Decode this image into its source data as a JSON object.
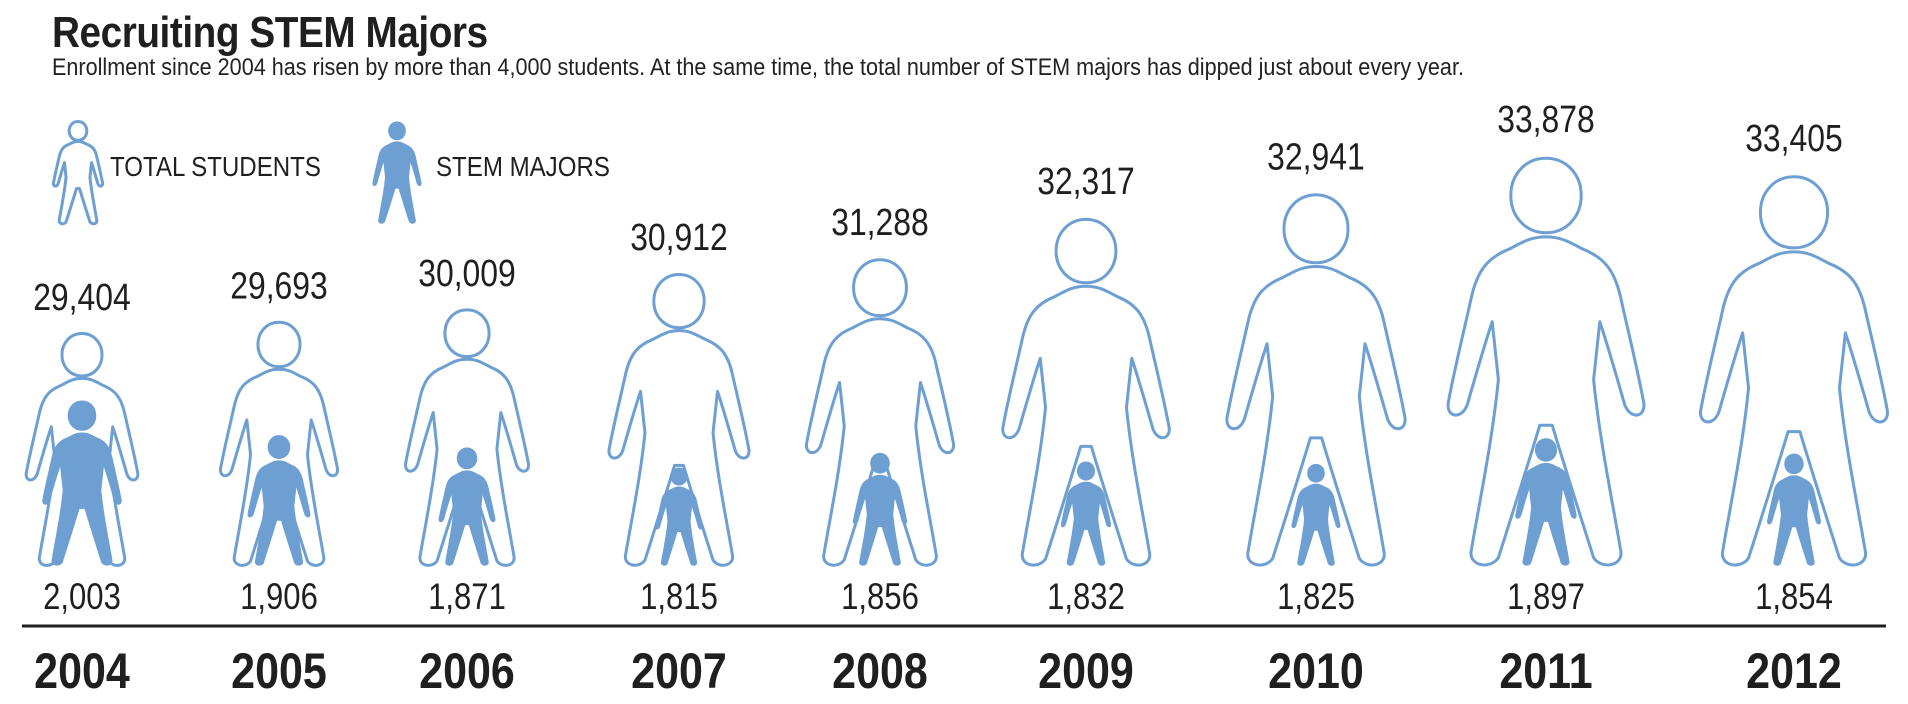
{
  "title": "Recruiting STEM Majors",
  "subtitle": "Enrollment since 2004 has risen by more than 4,000 students. At the same time, the total number of STEM majors has dipped just about every year.",
  "legend": {
    "total_label": "TOTAL STUDENTS",
    "stem_label": "STEM MAJORS"
  },
  "colors": {
    "figure_outline": "#6e9fd2",
    "figure_fill": "#6e9fd2",
    "text": "#1f1f1f",
    "baseline": "#1f1f1f"
  },
  "icons": {
    "total": "person-outline-icon",
    "stem": "person-filled-icon"
  },
  "chart_data": {
    "type": "pictograph",
    "categories": [
      "2004",
      "2005",
      "2006",
      "2007",
      "2008",
      "2009",
      "2010",
      "2011",
      "2012"
    ],
    "series": [
      {
        "name": "TOTAL STUDENTS",
        "values": [
          29404,
          29693,
          30009,
          30912,
          31288,
          32317,
          32941,
          33878,
          33405
        ],
        "labels": [
          "29,404",
          "29,693",
          "30,009",
          "30,912",
          "31,288",
          "32,317",
          "32,941",
          "33,878",
          "33,405"
        ]
      },
      {
        "name": "STEM MAJORS",
        "values": [
          2003,
          1906,
          1871,
          1815,
          1856,
          1832,
          1825,
          1897,
          1854
        ],
        "labels": [
          "2,003",
          "1,906",
          "1,871",
          "1,815",
          "1,856",
          "1,832",
          "1,825",
          "1,897",
          "1,854"
        ]
      }
    ]
  }
}
